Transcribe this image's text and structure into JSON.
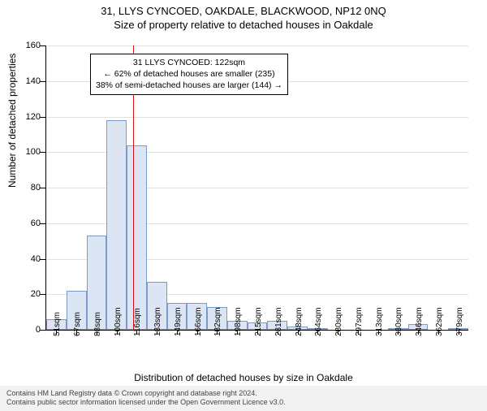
{
  "title": "31, LLYS CYNCOED, OAKDALE, BLACKWOOD, NP12 0NQ",
  "subtitle": "Size of property relative to detached houses in Oakdale",
  "chart": {
    "type": "histogram",
    "ylabel": "Number of detached properties",
    "xlabel": "Distribution of detached houses by size in Oakdale",
    "ylim_max": 160,
    "ytick_step": 20,
    "yticks": [
      0,
      20,
      40,
      60,
      80,
      100,
      120,
      140,
      160
    ],
    "bar_fill": "#dbe5f4",
    "bar_stroke": "#7a9ac9",
    "ref_line_color": "#d11",
    "ref_value_sqm": 122,
    "x_start": 51,
    "x_step": 16.4,
    "categories": [
      "51sqm",
      "67sqm",
      "83sqm",
      "100sqm",
      "116sqm",
      "133sqm",
      "149sqm",
      "166sqm",
      "182sqm",
      "198sqm",
      "215sqm",
      "231sqm",
      "248sqm",
      "264sqm",
      "280sqm",
      "297sqm",
      "313sqm",
      "330sqm",
      "346sqm",
      "362sqm",
      "379sqm"
    ],
    "values": [
      6,
      22,
      53,
      118,
      104,
      27,
      15,
      15,
      13,
      5,
      4,
      5,
      2,
      1,
      0,
      0,
      0,
      1,
      3,
      0,
      1
    ],
    "callout": {
      "line1": "31 LLYS CYNCOED: 122sqm",
      "line2": "← 62% of detached houses are smaller (235)",
      "line3": "38% of semi-detached houses are larger (144) →"
    }
  },
  "footer": {
    "line1": "Contains HM Land Registry data © Crown copyright and database right 2024.",
    "line2": "Contains public sector information licensed under the Open Government Licence v3.0."
  }
}
